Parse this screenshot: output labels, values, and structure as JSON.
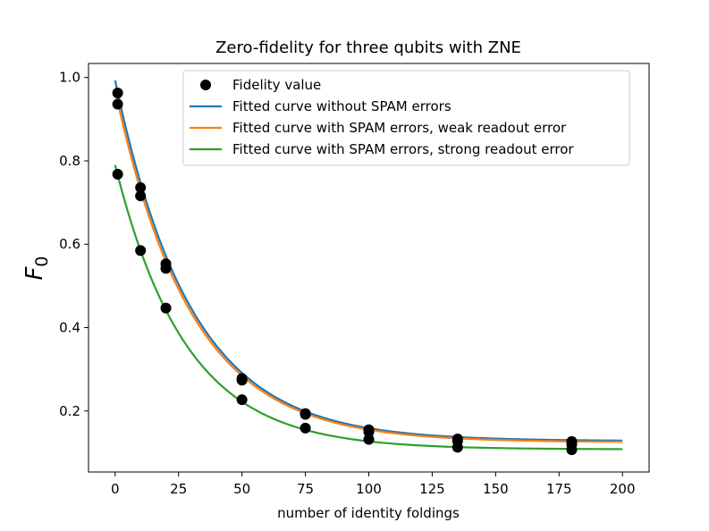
{
  "chart_data": {
    "type": "scatter",
    "title": "Zero-fidelity for three qubits with ZNE",
    "xlabel": "number of identity foldings",
    "ylabel": "F",
    "ylabel_subscript": "0",
    "xlim": [
      -10.5,
      210.5
    ],
    "ylim": [
      0.0537,
      1.0337
    ],
    "xticks": [
      0,
      25,
      50,
      75,
      100,
      125,
      150,
      175,
      200
    ],
    "xtick_labels": [
      "0",
      "25",
      "50",
      "75",
      "100",
      "125",
      "150",
      "175",
      "200"
    ],
    "yticks": [
      0.2,
      0.4,
      0.6,
      0.8,
      1.0
    ],
    "ytick_labels": [
      "0.2",
      "0.4",
      "0.6",
      "0.8",
      "1.0"
    ],
    "grid": false,
    "legend_position": "top-right",
    "scatter": {
      "name": "Fidelity value",
      "color": "#000000",
      "points": [
        {
          "x": 1,
          "y": 0.963
        },
        {
          "x": 1,
          "y": 0.936
        },
        {
          "x": 1,
          "y": 0.768
        },
        {
          "x": 10,
          "y": 0.736
        },
        {
          "x": 10,
          "y": 0.716
        },
        {
          "x": 10,
          "y": 0.585
        },
        {
          "x": 20,
          "y": 0.553
        },
        {
          "x": 20,
          "y": 0.542
        },
        {
          "x": 20,
          "y": 0.447
        },
        {
          "x": 50,
          "y": 0.278
        },
        {
          "x": 50,
          "y": 0.274
        },
        {
          "x": 50,
          "y": 0.227
        },
        {
          "x": 75,
          "y": 0.194
        },
        {
          "x": 75,
          "y": 0.192
        },
        {
          "x": 75,
          "y": 0.159
        },
        {
          "x": 100,
          "y": 0.155
        },
        {
          "x": 100,
          "y": 0.15
        },
        {
          "x": 100,
          "y": 0.132
        },
        {
          "x": 135,
          "y": 0.133
        },
        {
          "x": 135,
          "y": 0.128
        },
        {
          "x": 135,
          "y": 0.113
        },
        {
          "x": 180,
          "y": 0.127
        },
        {
          "x": 180,
          "y": 0.12
        },
        {
          "x": 180,
          "y": 0.107
        }
      ]
    },
    "series": [
      {
        "name": "Fitted curve without SPAM errors",
        "color": "#1f77b4",
        "x_start": 0,
        "x_end": 200,
        "model": {
          "offset": 0.128,
          "amplitude": 0.865,
          "decay": 30
        }
      },
      {
        "name": "Fitted curve with SPAM errors, weak readout error",
        "color": "#ff7f0e",
        "x_start": 0,
        "x_end": 200,
        "model": {
          "offset": 0.125,
          "amplitude": 0.845,
          "decay": 30
        }
      },
      {
        "name": "Fitted curve with SPAM errors, strong readout error",
        "color": "#2ca02c",
        "x_start": 0,
        "x_end": 200,
        "model": {
          "offset": 0.108,
          "amplitude": 0.682,
          "decay": 28
        }
      }
    ]
  }
}
